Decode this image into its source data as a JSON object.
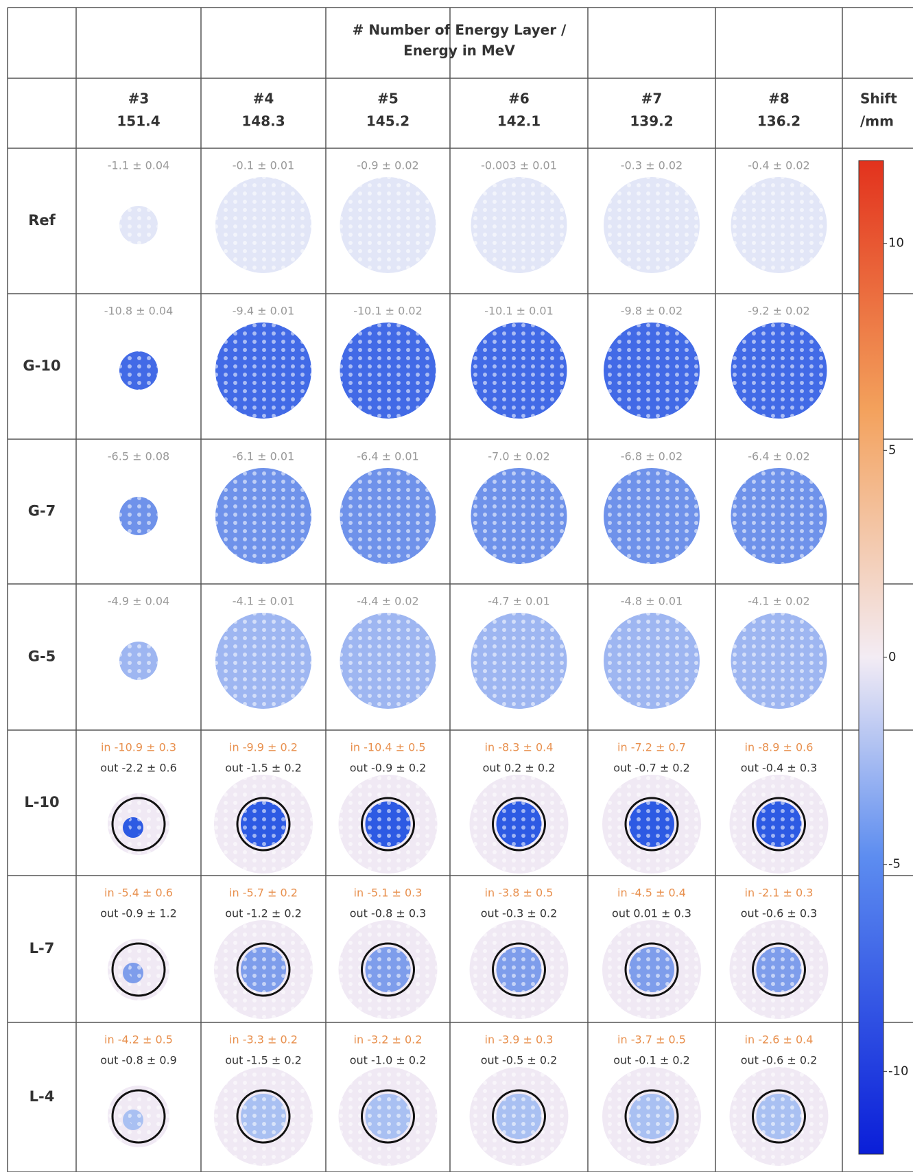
{
  "header": {
    "title": [
      "# Number of Energy Layer /",
      "Energy in MeV"
    ]
  },
  "columns": [
    {
      "layer": "#3",
      "energy": "151.4"
    },
    {
      "layer": "#4",
      "energy": "148.3"
    },
    {
      "layer": "#5",
      "energy": "145.2"
    },
    {
      "layer": "#6",
      "energy": "142.1"
    },
    {
      "layer": "#7",
      "energy": "139.2"
    },
    {
      "layer": "#8",
      "energy": "136.2"
    }
  ],
  "colorbar": {
    "label": [
      "Shift",
      "/mm"
    ],
    "range": [
      -12,
      12
    ],
    "ticks": [
      10,
      5,
      0,
      -5,
      -10
    ]
  },
  "rows": [
    {
      "label": "Ref",
      "cells": [
        [
          "-1.1 ± 0.04"
        ],
        [
          "-0.1 ± 0.01"
        ],
        [
          "-0.9 ± 0.02"
        ],
        [
          "-0.003 ± 0.01"
        ],
        [
          "-0.3 ± 0.02"
        ],
        [
          "-0.4 ± 0.02"
        ]
      ]
    },
    {
      "label": "G-10",
      "cells": [
        [
          "-10.8 ± 0.04"
        ],
        [
          "-9.4 ± 0.01"
        ],
        [
          "-10.1 ± 0.02"
        ],
        [
          "-10.1 ± 0.01"
        ],
        [
          "-9.8 ± 0.02"
        ],
        [
          "-9.2 ± 0.02"
        ]
      ]
    },
    {
      "label": "G-7",
      "cells": [
        [
          "-6.5 ± 0.08"
        ],
        [
          "-6.1 ± 0.01"
        ],
        [
          "-6.4 ± 0.01"
        ],
        [
          "-7.0 ± 0.02"
        ],
        [
          "-6.8 ± 0.02"
        ],
        [
          "-6.4 ± 0.02"
        ]
      ]
    },
    {
      "label": "G-5",
      "cells": [
        [
          "-4.9 ± 0.04"
        ],
        [
          "-4.1 ± 0.01"
        ],
        [
          "-4.4 ± 0.02"
        ],
        [
          "-4.7 ± 0.01"
        ],
        [
          "-4.8 ± 0.01"
        ],
        [
          "-4.1 ± 0.02"
        ]
      ]
    },
    {
      "label": "L-10",
      "cells": [
        [
          "in -10.9 ± 0.3",
          "out -2.2 ± 0.6"
        ],
        [
          "in -9.9 ± 0.2",
          "out -1.5 ± 0.2"
        ],
        [
          "in -10.4 ± 0.5",
          "out -0.9 ± 0.2"
        ],
        [
          "in -8.3 ± 0.4",
          "out 0.2 ± 0.2"
        ],
        [
          "in -7.2 ± 0.7",
          "out -0.7 ± 0.2"
        ],
        [
          "in -8.9 ± 0.6",
          "out -0.4 ± 0.3"
        ]
      ]
    },
    {
      "label": "L-7",
      "cells": [
        [
          "in -5.4 ± 0.6",
          "out -0.9 ± 1.2"
        ],
        [
          "in -5.7 ± 0.2",
          "out -1.2 ± 0.2"
        ],
        [
          "in -5.1 ± 0.3",
          "out -0.8 ± 0.3"
        ],
        [
          "in -3.8 ± 0.5",
          "out -0.3 ± 0.2"
        ],
        [
          "in -4.5 ± 0.4",
          "out 0.01 ± 0.3"
        ],
        [
          "in -2.1 ± 0.3",
          "out -0.6 ± 0.3"
        ]
      ]
    },
    {
      "label": "L-4",
      "cells": [
        [
          "in -4.2 ± 0.5",
          "out -0.8 ± 0.9"
        ],
        [
          "in -3.3 ± 0.2",
          "out -1.5 ± 0.2"
        ],
        [
          "in -3.2 ± 0.2",
          "out -1.0 ± 0.2"
        ],
        [
          "in -3.9 ± 0.3",
          "out -0.5 ± 0.2"
        ],
        [
          "in -3.7 ± 0.5",
          "out -0.1 ± 0.2"
        ],
        [
          "in -2.6 ± 0.4",
          "out -0.6 ± 0.2"
        ]
      ]
    }
  ]
}
